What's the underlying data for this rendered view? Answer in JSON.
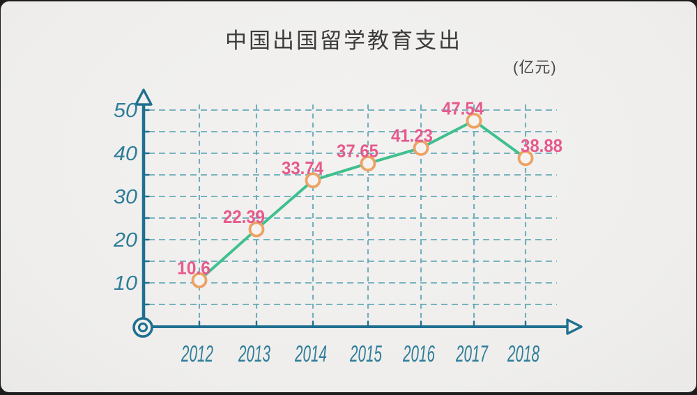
{
  "page": {
    "background_color": "#1d1d1d",
    "paper_color": "#f1f0ee"
  },
  "chart_data": {
    "type": "line",
    "title": "中国出国留学教育支出",
    "unit_label": "(亿元)",
    "categories": [
      "2012",
      "2013",
      "2014",
      "2015",
      "2016",
      "2017",
      "2018"
    ],
    "values": [
      10.6,
      22.39,
      33.74,
      37.65,
      41.23,
      47.54,
      38.88
    ],
    "value_labels": [
      "10.6",
      "22.39",
      "33.74",
      "37.65",
      "41.23",
      "47.54",
      "38.88"
    ],
    "xlabel": "",
    "ylabel": "",
    "ylim": [
      0,
      50
    ],
    "y_ticks": [
      10,
      20,
      30,
      40,
      50
    ],
    "grid_step": 5,
    "grid": "dashed",
    "legend": "none",
    "style": "hand-drawn",
    "colors": {
      "axis": "#1f7090",
      "axis_text": "#2e7d99",
      "grid": "#63a9b8",
      "line": "#3fc08e",
      "marker_ring": "#eda263",
      "marker_fill": "#f4f3f1",
      "value_label": "#e75a8d",
      "title_text": "#3c3c3c"
    }
  }
}
